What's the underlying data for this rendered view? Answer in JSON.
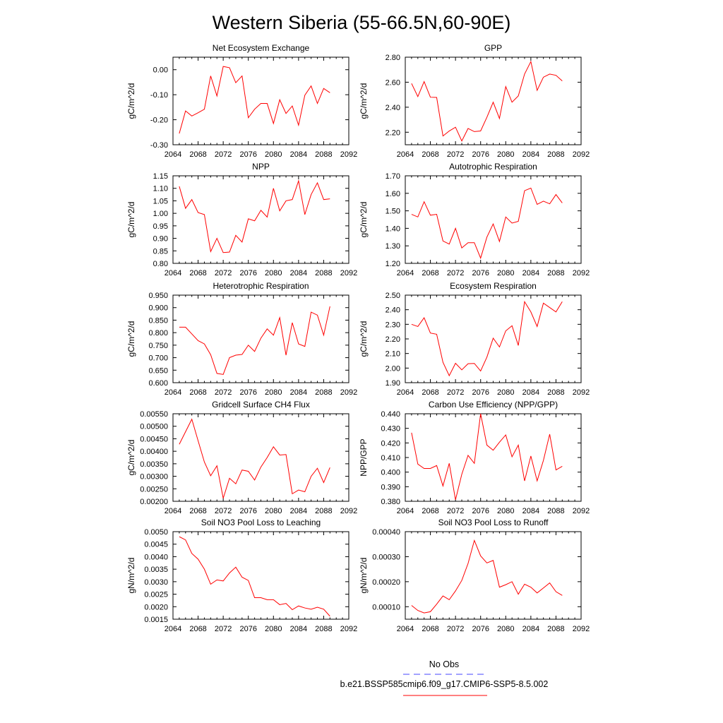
{
  "figure": {
    "title": "Western Siberia (55-66.5N,60-90E)"
  },
  "legend": {
    "entries": [
      {
        "label": "No Obs",
        "color": "#4444ff",
        "style": "dashed"
      },
      {
        "label": "b.e21.BSSP585cmip6.f09_g17.CMIP6-SSP5-8.5.002",
        "color": "#ff0000",
        "style": "solid"
      }
    ]
  },
  "chart_data": [
    {
      "type": "line",
      "title": "Net Ecosystem Exchange",
      "ylabel": "gC/m^2/d",
      "xlim": [
        2064,
        2092
      ],
      "xticks": [
        2064,
        2068,
        2072,
        2076,
        2080,
        2084,
        2088,
        2092
      ],
      "ylim": [
        -0.3,
        0.05
      ],
      "yticks": [
        0.0,
        -0.1,
        -0.2,
        -0.3
      ],
      "ytick_labels": [
        "0.00",
        "-0.10",
        "-0.20",
        "-0.30"
      ],
      "x": [
        2065,
        2066,
        2067,
        2068,
        2069,
        2070,
        2071,
        2072,
        2073,
        2074,
        2075,
        2076,
        2077,
        2078,
        2079,
        2080,
        2081,
        2082,
        2083,
        2084,
        2085,
        2086,
        2087,
        2088,
        2089
      ],
      "series": [
        {
          "color": "#ff0000",
          "values": [
            -0.255,
            -0.165,
            -0.185,
            -0.172,
            -0.158,
            -0.025,
            -0.105,
            0.013,
            0.008,
            -0.052,
            -0.025,
            -0.192,
            -0.158,
            -0.135,
            -0.135,
            -0.215,
            -0.12,
            -0.175,
            -0.145,
            -0.222,
            -0.102,
            -0.065,
            -0.135,
            -0.075,
            -0.092
          ]
        }
      ]
    },
    {
      "type": "line",
      "title": "GPP",
      "ylabel": "gC/m^2/d",
      "xlim": [
        2064,
        2092
      ],
      "xticks": [
        2064,
        2068,
        2072,
        2076,
        2080,
        2084,
        2088,
        2092
      ],
      "ylim": [
        2.1,
        2.8
      ],
      "yticks": [
        2.2,
        2.4,
        2.6,
        2.8
      ],
      "ytick_labels": [
        "2.20",
        "2.40",
        "2.60",
        "2.80"
      ],
      "x": [
        2065,
        2066,
        2067,
        2068,
        2069,
        2070,
        2071,
        2072,
        2073,
        2074,
        2075,
        2076,
        2077,
        2078,
        2079,
        2080,
        2081,
        2082,
        2083,
        2084,
        2085,
        2086,
        2087,
        2088,
        2089
      ],
      "series": [
        {
          "color": "#ff0000",
          "values": [
            2.59,
            2.485,
            2.605,
            2.48,
            2.478,
            2.17,
            2.21,
            2.24,
            2.13,
            2.23,
            2.205,
            2.21,
            2.32,
            2.44,
            2.31,
            2.565,
            2.44,
            2.49,
            2.665,
            2.765,
            2.535,
            2.64,
            2.665,
            2.655,
            2.61
          ]
        }
      ]
    },
    {
      "type": "line",
      "title": "NPP",
      "ylabel": "gC/m^2/d",
      "xlim": [
        2064,
        2092
      ],
      "xticks": [
        2064,
        2068,
        2072,
        2076,
        2080,
        2084,
        2088,
        2092
      ],
      "ylim": [
        0.8,
        1.15
      ],
      "yticks": [
        1.15,
        1.1,
        1.05,
        1.0,
        0.95,
        0.9,
        0.85,
        0.8
      ],
      "ytick_labels": [
        "1.15",
        "1.10",
        "1.05",
        "1.00",
        "0.95",
        "0.90",
        "0.85",
        "0.80"
      ],
      "x": [
        2065,
        2066,
        2067,
        2068,
        2069,
        2070,
        2071,
        2072,
        2073,
        2074,
        2075,
        2076,
        2077,
        2078,
        2079,
        2080,
        2081,
        2082,
        2083,
        2084,
        2085,
        2086,
        2087,
        2088,
        2089
      ],
      "series": [
        {
          "color": "#ff0000",
          "values": [
            1.108,
            1.02,
            1.055,
            1.003,
            0.995,
            0.847,
            0.9,
            0.843,
            0.845,
            0.912,
            0.885,
            0.978,
            0.97,
            1.012,
            0.985,
            1.1,
            1.01,
            1.05,
            1.055,
            1.13,
            0.995,
            1.075,
            1.122,
            1.055,
            1.058
          ]
        }
      ]
    },
    {
      "type": "line",
      "title": "Autotrophic Respiration",
      "ylabel": "gC/m^2/d",
      "xlim": [
        2064,
        2092
      ],
      "xticks": [
        2064,
        2068,
        2072,
        2076,
        2080,
        2084,
        2088,
        2092
      ],
      "ylim": [
        1.2,
        1.7
      ],
      "yticks": [
        1.7,
        1.6,
        1.5,
        1.4,
        1.3,
        1.2
      ],
      "ytick_labels": [
        "1.70",
        "1.60",
        "1.50",
        "1.40",
        "1.30",
        "1.20"
      ],
      "x": [
        2065,
        2066,
        2067,
        2068,
        2069,
        2070,
        2071,
        2072,
        2073,
        2074,
        2075,
        2076,
        2077,
        2078,
        2079,
        2080,
        2081,
        2082,
        2083,
        2084,
        2085,
        2086,
        2087,
        2088,
        2089
      ],
      "series": [
        {
          "color": "#ff0000",
          "values": [
            1.48,
            1.465,
            1.552,
            1.475,
            1.48,
            1.328,
            1.31,
            1.4,
            1.288,
            1.318,
            1.318,
            1.23,
            1.35,
            1.425,
            1.325,
            1.465,
            1.43,
            1.44,
            1.615,
            1.63,
            1.537,
            1.555,
            1.54,
            1.593,
            1.545
          ]
        }
      ]
    },
    {
      "type": "line",
      "title": "Heterotrophic Respiration",
      "ylabel": "gC/m^2/d",
      "xlim": [
        2064,
        2092
      ],
      "xticks": [
        2064,
        2068,
        2072,
        2076,
        2080,
        2084,
        2088,
        2092
      ],
      "ylim": [
        0.6,
        0.95
      ],
      "yticks": [
        0.95,
        0.9,
        0.85,
        0.8,
        0.75,
        0.7,
        0.65,
        0.6
      ],
      "ytick_labels": [
        "0.950",
        "0.900",
        "0.850",
        "0.800",
        "0.750",
        "0.700",
        "0.650",
        "0.600"
      ],
      "x": [
        2065,
        2066,
        2067,
        2068,
        2069,
        2070,
        2071,
        2072,
        2073,
        2074,
        2075,
        2076,
        2077,
        2078,
        2079,
        2080,
        2081,
        2082,
        2083,
        2084,
        2085,
        2086,
        2087,
        2088,
        2089
      ],
      "series": [
        {
          "color": "#ff0000",
          "values": [
            0.822,
            0.822,
            0.795,
            0.768,
            0.755,
            0.712,
            0.637,
            0.633,
            0.7,
            0.71,
            0.713,
            0.75,
            0.725,
            0.778,
            0.815,
            0.79,
            0.86,
            0.71,
            0.84,
            0.755,
            0.745,
            0.882,
            0.87,
            0.79,
            0.905
          ]
        }
      ]
    },
    {
      "type": "line",
      "title": "Ecosystem Respiration",
      "ylabel": "gC/m^2/d",
      "xlim": [
        2064,
        2092
      ],
      "xticks": [
        2064,
        2068,
        2072,
        2076,
        2080,
        2084,
        2088,
        2092
      ],
      "ylim": [
        1.9,
        2.5
      ],
      "yticks": [
        2.5,
        2.4,
        2.3,
        2.2,
        2.1,
        2.0,
        1.9
      ],
      "ytick_labels": [
        "2.50",
        "2.40",
        "2.30",
        "2.20",
        "2.10",
        "2.00",
        "1.90"
      ],
      "x": [
        2065,
        2066,
        2067,
        2068,
        2069,
        2070,
        2071,
        2072,
        2073,
        2074,
        2075,
        2076,
        2077,
        2078,
        2079,
        2080,
        2081,
        2082,
        2083,
        2084,
        2085,
        2086,
        2087,
        2088,
        2089
      ],
      "series": [
        {
          "color": "#ff0000",
          "values": [
            2.3,
            2.285,
            2.345,
            2.24,
            2.232,
            2.04,
            1.948,
            2.033,
            1.988,
            2.03,
            2.032,
            1.98,
            2.075,
            2.205,
            2.145,
            2.255,
            2.29,
            2.155,
            2.455,
            2.385,
            2.285,
            2.445,
            2.415,
            2.385,
            2.455
          ]
        }
      ]
    },
    {
      "type": "line",
      "title": "Gridcell Surface CH4 Flux",
      "ylabel": "gC/m^2/d",
      "xlim": [
        2064,
        2092
      ],
      "xticks": [
        2064,
        2068,
        2072,
        2076,
        2080,
        2084,
        2088,
        2092
      ],
      "ylim": [
        0.002,
        0.0055
      ],
      "yticks": [
        0.0055,
        0.005,
        0.0045,
        0.004,
        0.0035,
        0.003,
        0.0025,
        0.002
      ],
      "ytick_labels": [
        "0.00550",
        "0.00500",
        "0.00450",
        "0.00400",
        "0.00350",
        "0.00300",
        "0.00250",
        "0.00200"
      ],
      "x": [
        2065,
        2066,
        2067,
        2068,
        2069,
        2070,
        2071,
        2072,
        2073,
        2074,
        2075,
        2076,
        2077,
        2078,
        2079,
        2080,
        2081,
        2082,
        2083,
        2084,
        2085,
        2086,
        2087,
        2088,
        2089
      ],
      "series": [
        {
          "color": "#ff0000",
          "values": [
            0.00428,
            0.00478,
            0.00528,
            0.00442,
            0.00357,
            0.00302,
            0.00342,
            0.00212,
            0.00292,
            0.0027,
            0.00325,
            0.0032,
            0.00285,
            0.00337,
            0.00375,
            0.00418,
            0.00385,
            0.00387,
            0.0023,
            0.00245,
            0.00238,
            0.003,
            0.00332,
            0.00275,
            0.00335
          ]
        }
      ]
    },
    {
      "type": "line",
      "title": "Carbon Use Efficiency (NPP/GPP)",
      "ylabel": "NPP/GPP",
      "xlim": [
        2064,
        2092
      ],
      "xticks": [
        2064,
        2068,
        2072,
        2076,
        2080,
        2084,
        2088,
        2092
      ],
      "ylim": [
        0.38,
        0.44
      ],
      "yticks": [
        0.44,
        0.43,
        0.42,
        0.41,
        0.4,
        0.39,
        0.38
      ],
      "ytick_labels": [
        "0.440",
        "0.430",
        "0.420",
        "0.410",
        "0.400",
        "0.390",
        "0.380"
      ],
      "x": [
        2065,
        2066,
        2067,
        2068,
        2069,
        2070,
        2071,
        2072,
        2073,
        2074,
        2075,
        2076,
        2077,
        2078,
        2079,
        2080,
        2081,
        2082,
        2083,
        2084,
        2085,
        2086,
        2087,
        2088,
        2089
      ],
      "series": [
        {
          "color": "#ff0000",
          "values": [
            0.427,
            0.4055,
            0.4025,
            0.4025,
            0.4045,
            0.3905,
            0.406,
            0.381,
            0.3985,
            0.4115,
            0.406,
            0.44,
            0.4185,
            0.415,
            0.4205,
            0.4255,
            0.4105,
            0.4185,
            0.394,
            0.411,
            0.394,
            0.408,
            0.426,
            0.4015,
            0.404
          ]
        }
      ]
    },
    {
      "type": "line",
      "title": "Soil NO3 Pool Loss to Leaching",
      "ylabel": "gN/m^2/d",
      "xlim": [
        2064,
        2092
      ],
      "xticks": [
        2064,
        2068,
        2072,
        2076,
        2080,
        2084,
        2088,
        2092
      ],
      "ylim": [
        0.0015,
        0.005
      ],
      "yticks": [
        0.005,
        0.0045,
        0.004,
        0.0035,
        0.003,
        0.0025,
        0.002,
        0.0015
      ],
      "ytick_labels": [
        "0.0050",
        "0.0045",
        "0.0040",
        "0.0035",
        "0.0030",
        "0.0025",
        "0.0020",
        "0.0015"
      ],
      "x": [
        2065,
        2066,
        2067,
        2068,
        2069,
        2070,
        2071,
        2072,
        2073,
        2074,
        2075,
        2076,
        2077,
        2078,
        2079,
        2080,
        2081,
        2082,
        2083,
        2084,
        2085,
        2086,
        2087,
        2088,
        2089
      ],
      "series": [
        {
          "color": "#ff0000",
          "values": [
            0.0048,
            0.00467,
            0.00413,
            0.0039,
            0.0035,
            0.0029,
            0.00307,
            0.00303,
            0.00335,
            0.00358,
            0.00318,
            0.00305,
            0.00236,
            0.00236,
            0.00228,
            0.00228,
            0.00208,
            0.00213,
            0.00188,
            0.00203,
            0.00195,
            0.0019,
            0.00198,
            0.0019,
            0.00162
          ]
        }
      ]
    },
    {
      "type": "line",
      "title": "Soil NO3 Pool Loss to Runoff",
      "ylabel": "gN/m^2/d",
      "xlim": [
        2064,
        2092
      ],
      "xticks": [
        2064,
        2068,
        2072,
        2076,
        2080,
        2084,
        2088,
        2092
      ],
      "ylim": [
        5e-05,
        0.0004
      ],
      "yticks": [
        0.0004,
        0.0003,
        0.0002,
        0.0001
      ],
      "ytick_labels": [
        "0.00040",
        "0.00030",
        "0.00020",
        "0.00010"
      ],
      "x": [
        2065,
        2066,
        2067,
        2068,
        2069,
        2070,
        2071,
        2072,
        2073,
        2074,
        2075,
        2076,
        2077,
        2078,
        2079,
        2080,
        2081,
        2082,
        2083,
        2084,
        2085,
        2086,
        2087,
        2088,
        2089
      ],
      "series": [
        {
          "color": "#ff0000",
          "values": [
            0.000105,
            8.5e-05,
            7.5e-05,
            8e-05,
            0.00011,
            0.000143,
            0.000128,
            0.000163,
            0.000205,
            0.000273,
            0.000365,
            0.000303,
            0.000275,
            0.000285,
            0.000178,
            0.000188,
            0.0002,
            0.00015,
            0.00019,
            0.000178,
            0.000155,
            0.000175,
            0.000195,
            0.00016,
            0.000145
          ]
        }
      ]
    }
  ]
}
